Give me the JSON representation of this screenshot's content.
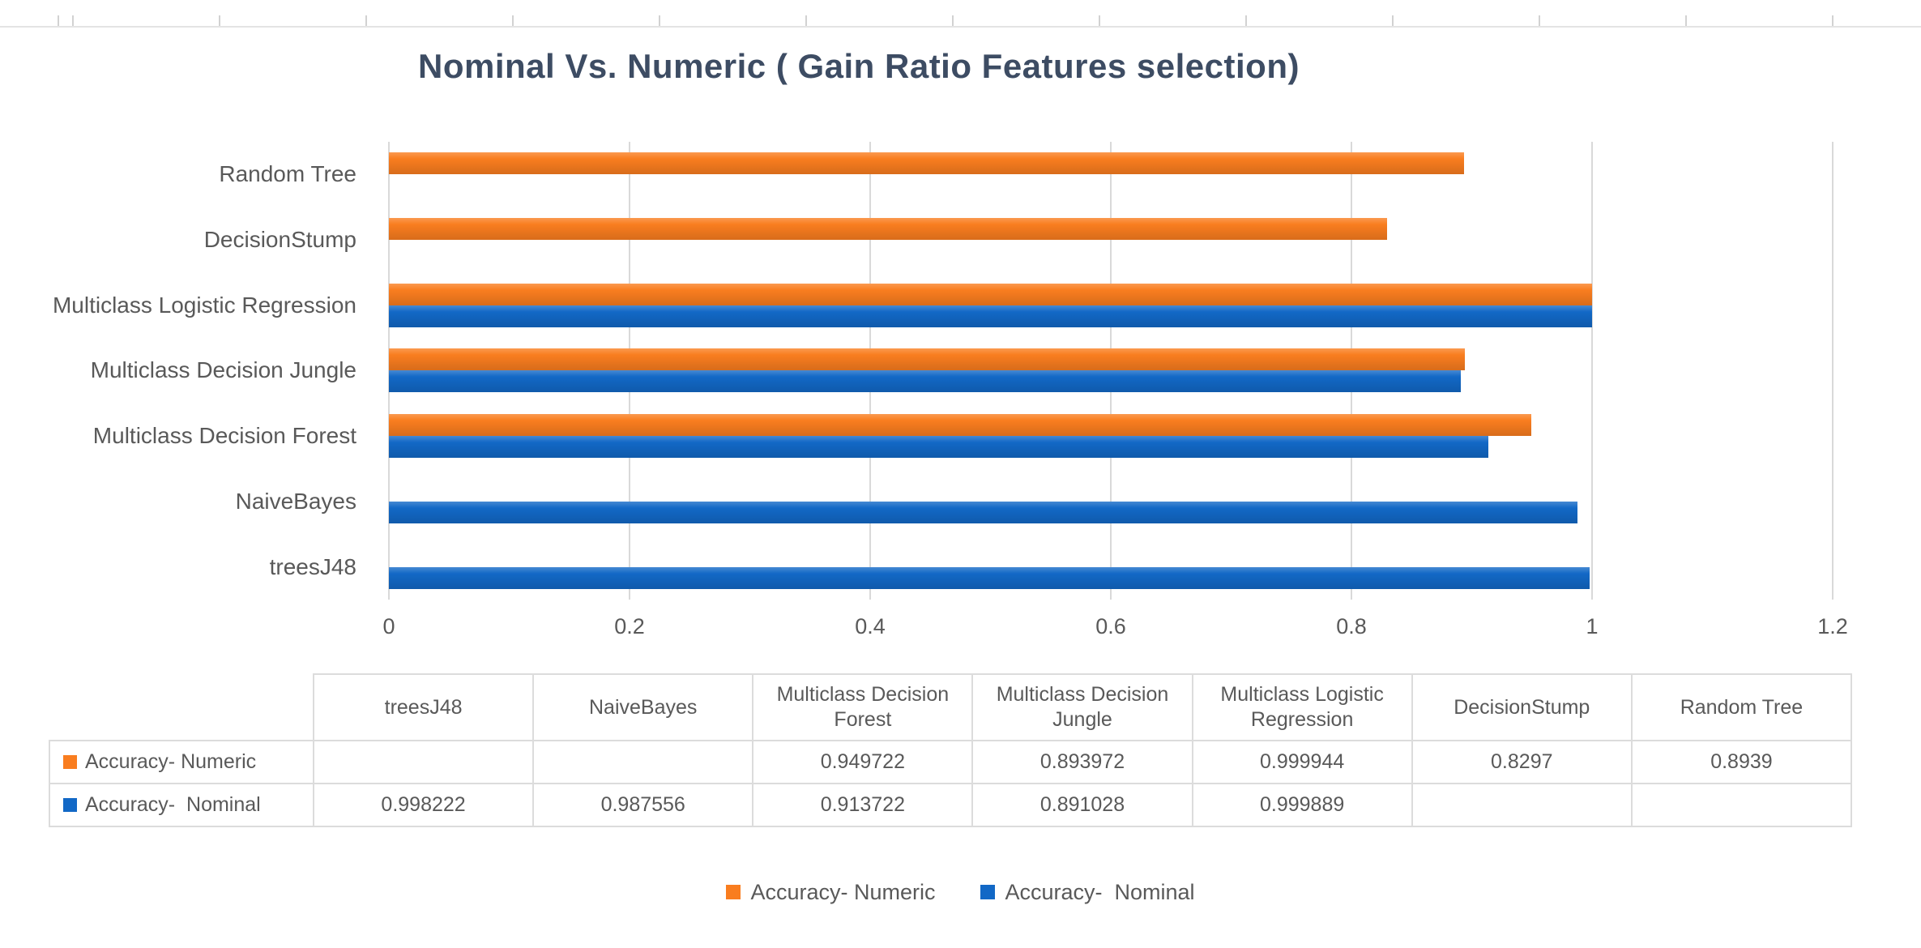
{
  "chart_data": {
    "type": "bar",
    "orientation": "horizontal",
    "title": "Nominal Vs. Numeric ( Gain Ratio Features selection)",
    "title_color": "#3d4c63",
    "categories": [
      "Random Tree",
      "DecisionStump",
      "Multiclass Logistic Regression",
      "Multiclass Decision Jungle",
      "Multiclass Decision Forest",
      "NaiveBayes",
      "treesJ48"
    ],
    "series": [
      {
        "name": "Accuracy- Numeric",
        "color": "#f97d1f",
        "values": [
          0.8939,
          0.8297,
          0.999944,
          0.893972,
          0.949722,
          null,
          null
        ]
      },
      {
        "name": "Accuracy-  Nominal",
        "color": "#1268c6",
        "values": [
          null,
          null,
          0.999889,
          0.891028,
          0.913722,
          0.987556,
          0.998222
        ]
      }
    ],
    "xlim": [
      0,
      1.2
    ],
    "x_tick_values": [
      0,
      0.2,
      0.4,
      0.6,
      0.8,
      1,
      1.2
    ],
    "x_tick_labels": [
      "0",
      "0.2",
      "0.4",
      "0.6",
      "0.8",
      "1",
      "1.2"
    ],
    "grid": "vertical",
    "gridline_color": "#d9d9d9",
    "axis_text_color": "#595959",
    "legend_position": "bottom"
  },
  "table": {
    "columns": [
      "treesJ48",
      "NaiveBayes",
      "Multiclass Decision Forest",
      "Multiclass Decision Jungle",
      "Multiclass Logistic Regression",
      "DecisionStump",
      "Random Tree"
    ],
    "rows": [
      {
        "label": "Accuracy- Numeric",
        "swatch_color": "#f97d1f",
        "values": [
          "",
          "",
          "0.949722",
          "0.893972",
          "0.999944",
          "0.8297",
          "0.8939"
        ]
      },
      {
        "label": "Accuracy-  Nominal",
        "swatch_color": "#1268c6",
        "values": [
          "0.998222",
          "0.987556",
          "0.913722",
          "0.891028",
          "0.999889",
          "",
          ""
        ]
      }
    ]
  },
  "legend": {
    "items": [
      {
        "label": "Accuracy- Numeric",
        "color": "#f97d1f"
      },
      {
        "label": "Accuracy-  Nominal",
        "color": "#1268c6"
      }
    ]
  }
}
